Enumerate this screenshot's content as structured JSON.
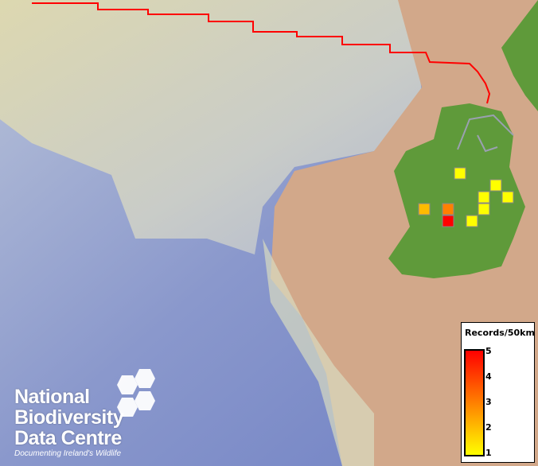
{
  "legend": {
    "title": "Records/50km",
    "ticks": [
      "5",
      "4",
      "3",
      "2",
      "1"
    ],
    "colors": {
      "high": "#ff0000",
      "mid": "#ff8000",
      "low": "#ffff00"
    }
  },
  "logo": {
    "lines": [
      "National",
      "Biodiversity",
      "Data Centre"
    ],
    "tagline": "Documenting Ireland's Wildlife"
  },
  "records": [
    {
      "value": 1,
      "color": "#ffff00"
    },
    {
      "value": 1,
      "color": "#ffff00"
    },
    {
      "value": 1,
      "color": "#ffff00"
    },
    {
      "value": 1,
      "color": "#ffff00"
    },
    {
      "value": 1,
      "color": "#ffff00"
    },
    {
      "value": 2,
      "color": "#ffbb00"
    },
    {
      "value": 3,
      "color": "#ff8000"
    },
    {
      "value": 5,
      "color": "#ff0000"
    },
    {
      "value": 1,
      "color": "#ffff00"
    }
  ],
  "boundary_color": "#ff0000"
}
